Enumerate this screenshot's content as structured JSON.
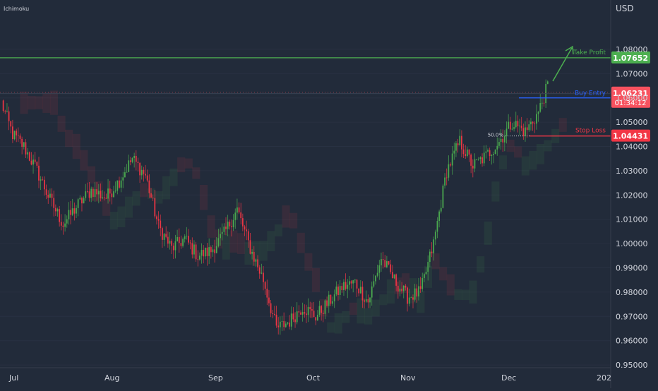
{
  "indicator_label": "Ichimoku",
  "currency": "USD",
  "chart_data": {
    "type": "candlestick",
    "x_tick_labels": [
      "Jul",
      "Aug",
      "Sep",
      "Oct",
      "Nov",
      "Dec",
      "202"
    ],
    "y_tick_labels": [
      "1.08000",
      "1.07000",
      "1.06000",
      "1.05000",
      "1.04000",
      "1.03000",
      "1.02000",
      "1.01000",
      "1.00000",
      "0.99000",
      "0.98000",
      "0.97000",
      "0.96000",
      "0.95000"
    ],
    "y_ticks": [
      1.08,
      1.07,
      1.06,
      1.05,
      1.04,
      1.03,
      1.02,
      1.01,
      1.0,
      0.99,
      0.98,
      0.97,
      0.96,
      0.95
    ],
    "ylim": [
      0.9365,
      1.0962
    ],
    "price_path": [
      [
        0,
        1.058
      ],
      [
        6,
        1.045
      ],
      [
        12,
        1.04
      ],
      [
        19,
        1.03
      ],
      [
        26,
        1.018
      ],
      [
        33,
        1.008
      ],
      [
        41,
        1.016
      ],
      [
        48,
        1.022
      ],
      [
        56,
        1.019
      ],
      [
        63,
        1.026
      ],
      [
        70,
        1.035
      ],
      [
        77,
        1.028
      ],
      [
        84,
        1.007
      ],
      [
        91,
        0.998
      ],
      [
        98,
        1.002
      ],
      [
        105,
        0.995
      ],
      [
        112,
        0.997
      ],
      [
        119,
        1.004
      ],
      [
        126,
        1.014
      ],
      [
        133,
        0.998
      ],
      [
        140,
        0.985
      ],
      [
        147,
        0.965
      ],
      [
        154,
        0.968
      ],
      [
        161,
        0.974
      ],
      [
        168,
        0.97
      ],
      [
        175,
        0.976
      ],
      [
        182,
        0.982
      ],
      [
        189,
        0.984
      ],
      [
        196,
        0.976
      ],
      [
        203,
        0.994
      ],
      [
        210,
        0.985
      ],
      [
        217,
        0.978
      ],
      [
        224,
        0.98
      ],
      [
        231,
        1.0
      ],
      [
        238,
        1.03
      ],
      [
        245,
        1.042
      ],
      [
        252,
        1.032
      ],
      [
        259,
        1.036
      ],
      [
        266,
        1.042
      ],
      [
        273,
        1.05
      ],
      [
        280,
        1.046
      ],
      [
        287,
        1.054
      ],
      [
        292,
        1.065
      ]
    ],
    "levels": [
      {
        "name": "Take Profit",
        "value": 1.07652,
        "label": "1.07652",
        "color": "#4caf50"
      },
      {
        "name": "Buy Entry",
        "value": 1.06,
        "color": "#2962ff"
      },
      {
        "name": "Stop Loss",
        "value": 1.04431,
        "label": "1.04431",
        "color": "#f23645"
      }
    ],
    "fib_label": "50.0%",
    "current_price": {
      "value": 1.06231,
      "label": "1.06231",
      "countdown": "01:34:12",
      "color": "#f7525f"
    },
    "colors": {
      "up": "#4caf50",
      "down": "#f23645",
      "background": "#222b3a",
      "text": "#d1d4dc"
    }
  }
}
